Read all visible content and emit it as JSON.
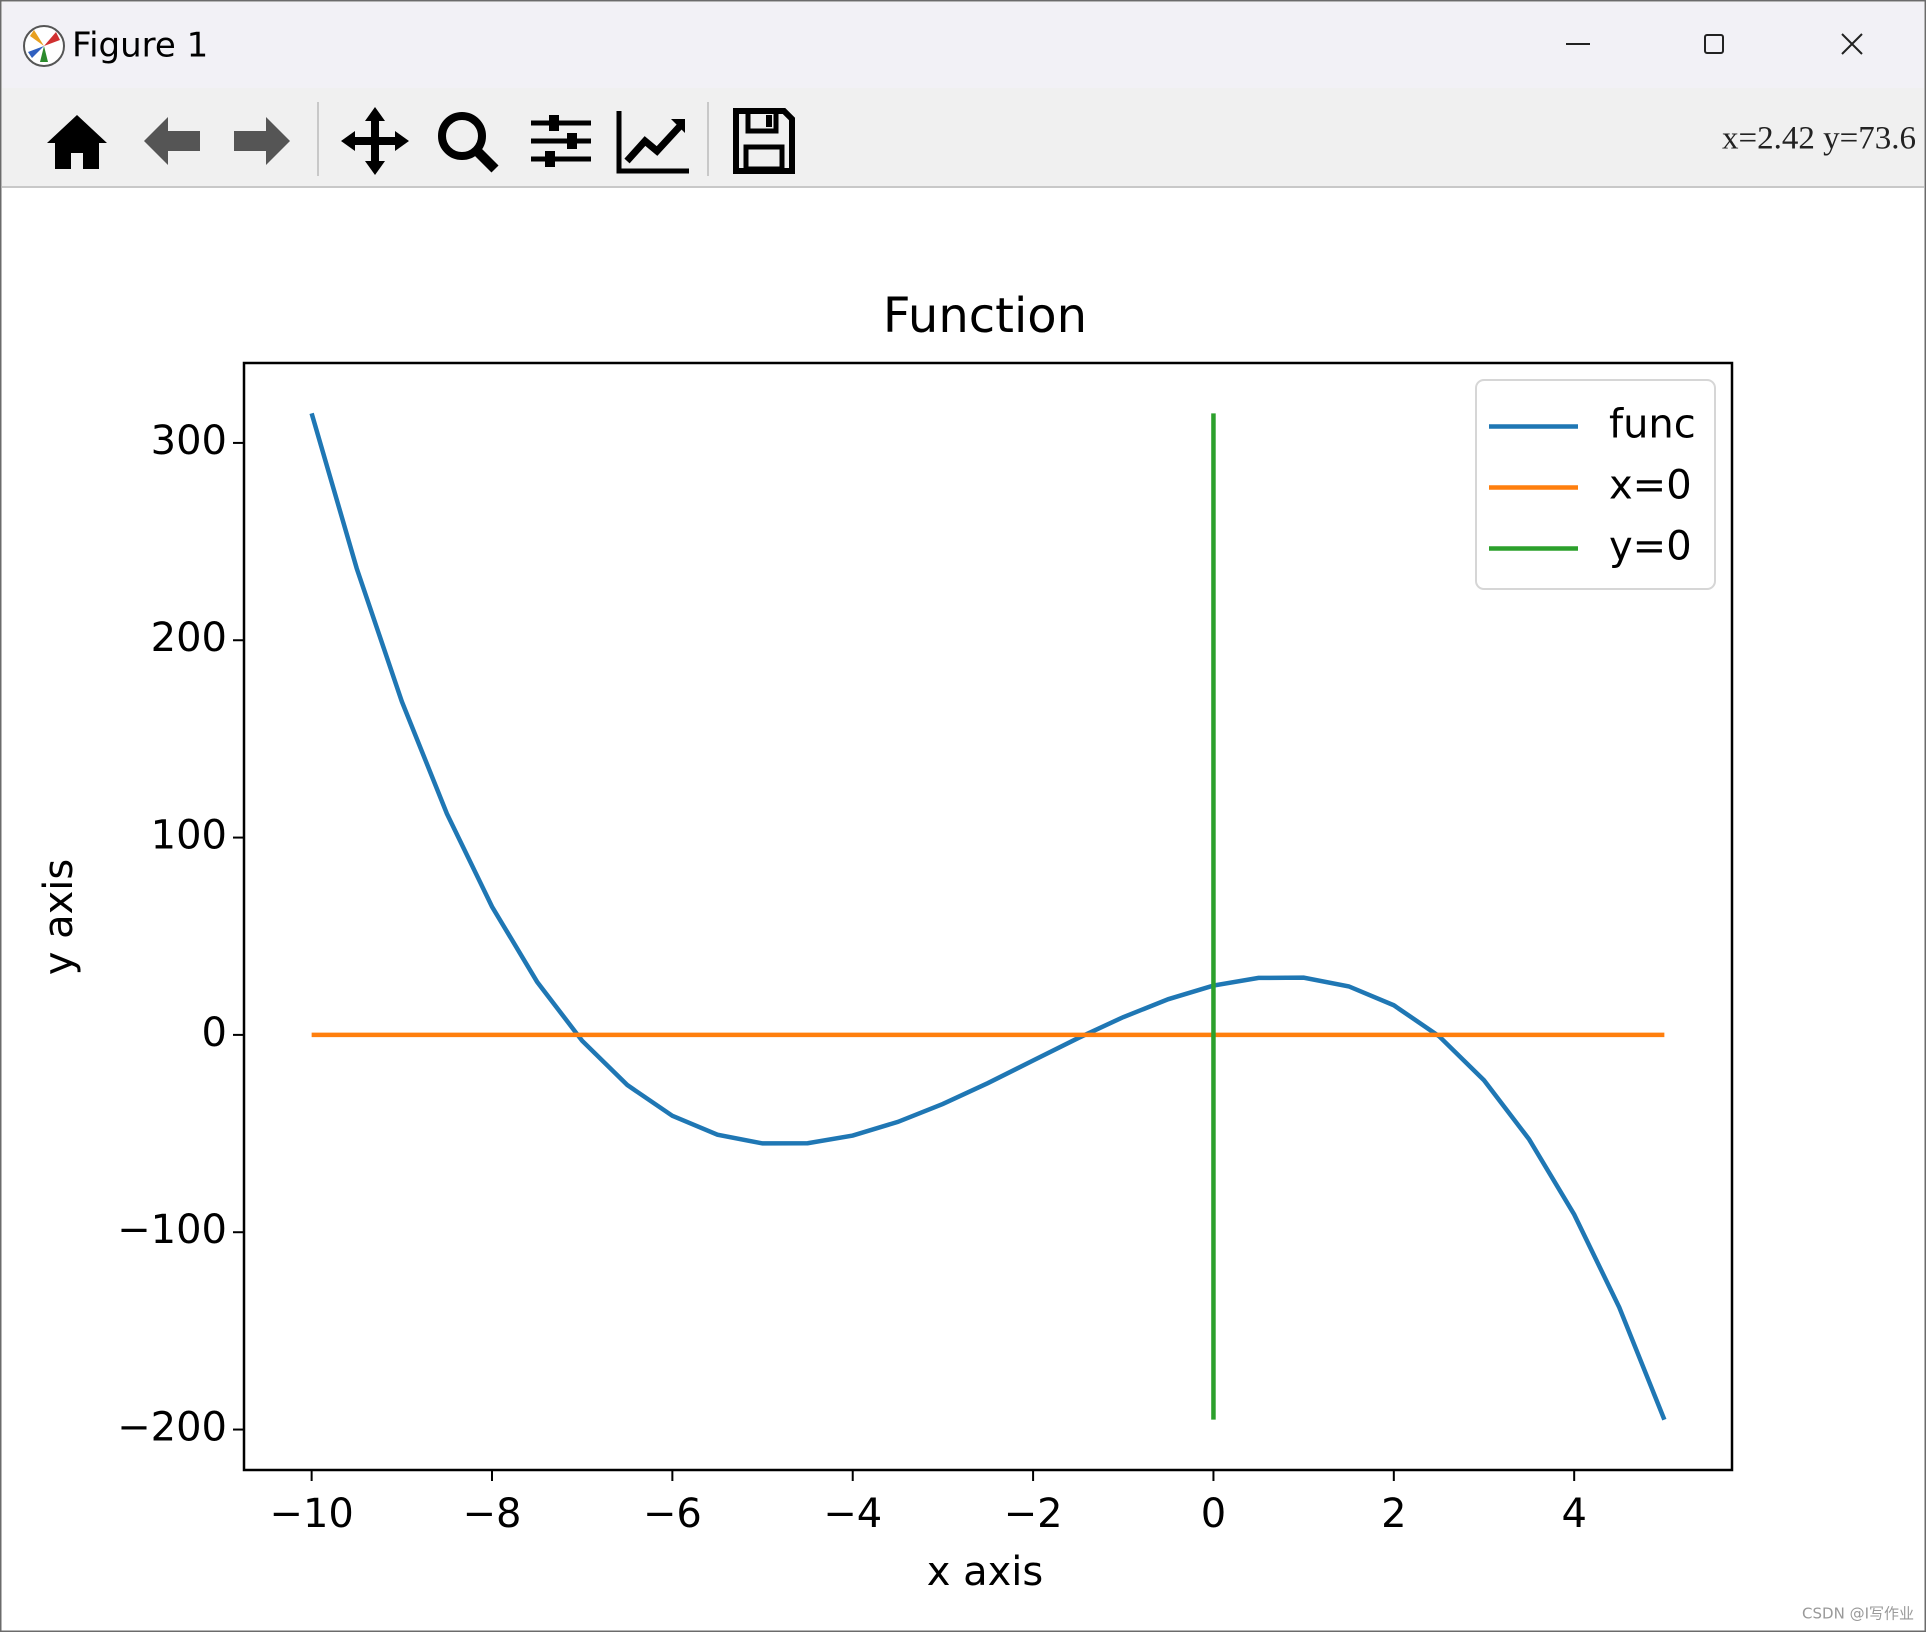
{
  "window": {
    "title": "Figure 1",
    "status": "x=2.42  y=73.6",
    "watermark": "CSDN @I写作业"
  },
  "chart_data": {
    "type": "line",
    "title": "Function",
    "x_label": "x axis",
    "y_label": "y axis",
    "xlim": [
      -10.75,
      5.75
    ],
    "ylim": [
      -220.5,
      340.5
    ],
    "xticks": [
      {
        "value": -10,
        "label": "−10"
      },
      {
        "value": -8,
        "label": "−8"
      },
      {
        "value": -6,
        "label": "−6"
      },
      {
        "value": -4,
        "label": "−4"
      },
      {
        "value": -2,
        "label": "−2"
      },
      0,
      2,
      4
    ],
    "yticks": [
      {
        "value": -200,
        "label": "−200"
      },
      {
        "value": -100,
        "label": "−100"
      },
      0,
      100,
      200,
      300
    ],
    "legend": "upper right",
    "series": [
      {
        "name": "func",
        "color": "#1f77b4",
        "x": [
          -10,
          -9.5,
          -9,
          -8.5,
          -8,
          -7.5,
          -7,
          -6.5,
          -6,
          -5.5,
          -5,
          -4.5,
          -4,
          -3.5,
          -3,
          -2.5,
          -2,
          -1.5,
          -1,
          -0.5,
          0,
          0.5,
          1,
          1.5,
          2,
          2.5,
          3,
          3.5,
          4,
          4.5,
          5
        ],
        "values": [
          315,
          236.4,
          169,
          112.1,
          65,
          26.9,
          -3,
          -25.4,
          -41,
          -50.6,
          -55,
          -54.9,
          -51,
          -44.1,
          -35,
          -24.4,
          -13,
          -1.6,
          9,
          18.1,
          25,
          28.9,
          29,
          24.6,
          15,
          -0.6,
          -23,
          -52.9,
          -91,
          -138.1,
          -195
        ]
      },
      {
        "name": "x=0",
        "color": "#ff7f0e",
        "x": [
          -10,
          5
        ],
        "values": [
          0,
          0
        ]
      },
      {
        "name": "y=0",
        "color": "#2ca02c",
        "x": [
          0,
          0
        ],
        "values": [
          -195,
          315
        ]
      }
    ]
  }
}
